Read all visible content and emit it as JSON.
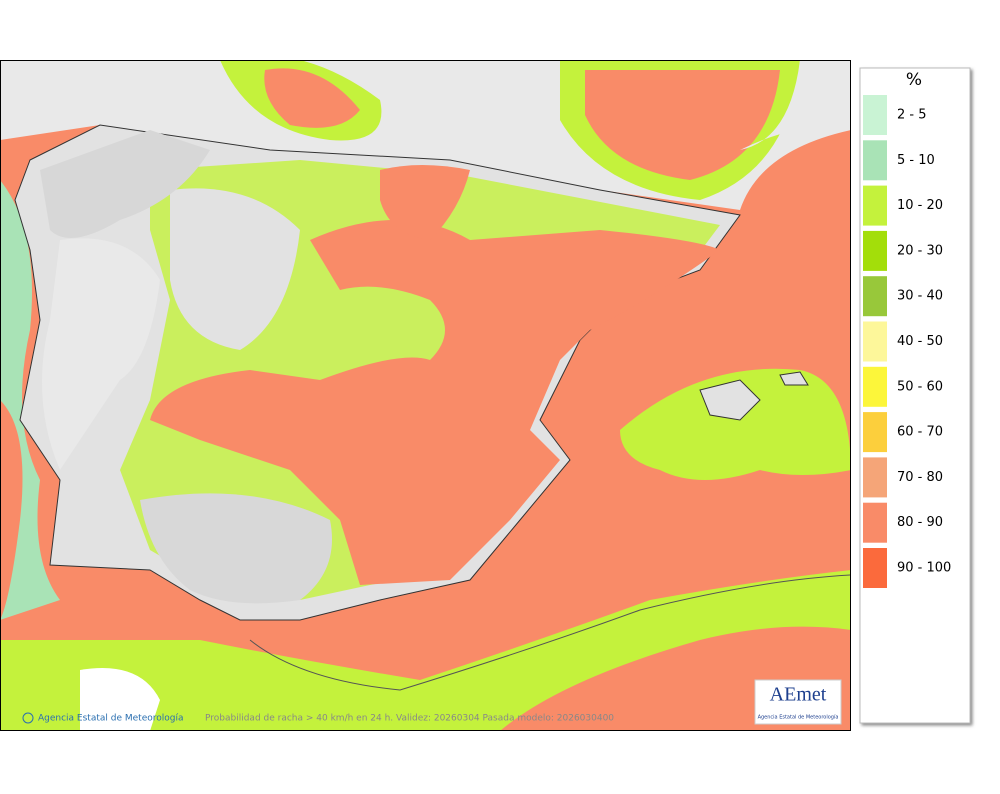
{
  "map": {
    "credit": "Agencia Estatal de Meteorología",
    "caption": "Probabilidad de racha > 40 km/h en 24 h. Validez: 20260304 Pasada modelo: 2026030400",
    "logo": {
      "mark": "AEmet",
      "name": "Agencia Estatal de Meteorología"
    }
  },
  "legend": {
    "title": "%",
    "items": [
      {
        "label": "2 - 5",
        "color": "#c9f3d4"
      },
      {
        "label": "5 - 10",
        "color": "#a9e3b6"
      },
      {
        "label": "10 - 20",
        "color": "#c4f23c"
      },
      {
        "label": "20 - 30",
        "color": "#a3de0a"
      },
      {
        "label": "30 - 40",
        "color": "#98c83a"
      },
      {
        "label": "40 - 50",
        "color": "#fdf79a"
      },
      {
        "label": "50 - 60",
        "color": "#fcf63a"
      },
      {
        "label": "60 - 70",
        "color": "#fccf3c"
      },
      {
        "label": "70 - 80",
        "color": "#f5a578"
      },
      {
        "label": "80 - 90",
        "color": "#f98b68"
      },
      {
        "label": "90 - 100",
        "color": "#fb6a3c"
      }
    ]
  }
}
